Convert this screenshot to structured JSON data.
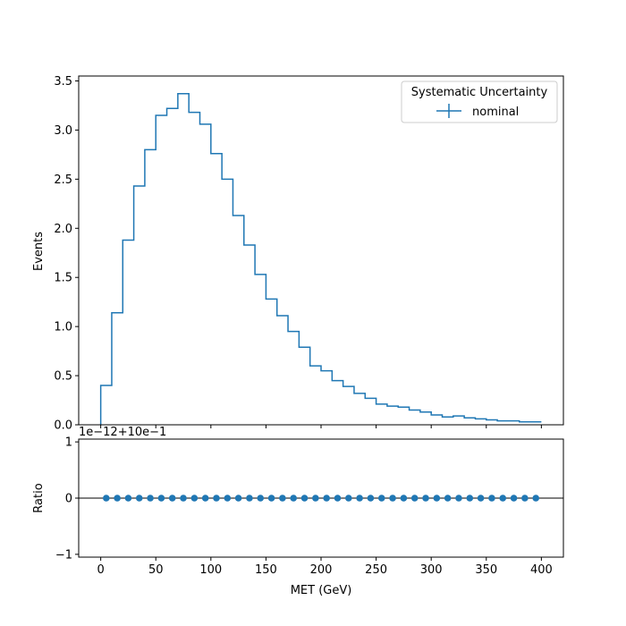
{
  "chart_data": [
    {
      "type": "histogram",
      "ylabel": "Events",
      "xlim": [
        -20,
        420
      ],
      "ylim": [
        0,
        3.55
      ],
      "yticks": [
        0.0,
        0.5,
        1.0,
        1.5,
        2.0,
        2.5,
        3.0,
        3.5
      ],
      "ytick_labels": [
        "0.0",
        "0.5",
        "1.0",
        "1.5",
        "2.0",
        "2.5",
        "3.0",
        "3.5"
      ],
      "xticks": [
        0,
        50,
        100,
        150,
        200,
        250,
        300,
        350,
        400
      ],
      "bin_edges": [
        0,
        10,
        20,
        30,
        40,
        50,
        60,
        70,
        80,
        90,
        100,
        110,
        120,
        130,
        140,
        150,
        160,
        170,
        180,
        190,
        200,
        210,
        220,
        230,
        240,
        250,
        260,
        270,
        280,
        290,
        300,
        310,
        320,
        330,
        340,
        350,
        360,
        370,
        380,
        390,
        400
      ],
      "values": [
        0.4,
        1.14,
        1.88,
        2.43,
        2.8,
        3.15,
        3.22,
        3.37,
        3.18,
        3.06,
        2.76,
        2.5,
        2.13,
        1.83,
        1.53,
        1.28,
        1.11,
        0.95,
        0.79,
        0.6,
        0.55,
        0.45,
        0.39,
        0.32,
        0.27,
        0.21,
        0.19,
        0.18,
        0.15,
        0.13,
        0.1,
        0.08,
        0.09,
        0.07,
        0.06,
        0.05,
        0.04,
        0.04,
        0.03,
        0.03
      ],
      "color": "#1f77b4",
      "legend": {
        "title": "Systematic Uncertainty",
        "entries": [
          "nominal"
        ],
        "placement": "top-right"
      }
    },
    {
      "type": "scatter",
      "ylabel": "Ratio",
      "xlabel": "MET (GeV)",
      "offset_text": "1e−12+10e−1",
      "xlim": [
        -20,
        420
      ],
      "ylim": [
        -1.05,
        1.05
      ],
      "yticks": [
        -1,
        0,
        1
      ],
      "ytick_labels": [
        "−1",
        "0",
        "1"
      ],
      "xticks": [
        0,
        50,
        100,
        150,
        200,
        250,
        300,
        350,
        400
      ],
      "xtick_labels": [
        "0",
        "50",
        "100",
        "150",
        "200",
        "250",
        "300",
        "350",
        "400"
      ],
      "x": [
        5,
        15,
        25,
        35,
        45,
        55,
        65,
        75,
        85,
        95,
        105,
        115,
        125,
        135,
        145,
        155,
        165,
        175,
        185,
        195,
        205,
        215,
        225,
        235,
        245,
        255,
        265,
        275,
        285,
        295,
        305,
        315,
        325,
        335,
        345,
        355,
        365,
        375,
        385,
        395
      ],
      "y": [
        0,
        0,
        0,
        0,
        0,
        0,
        0,
        0,
        0,
        0,
        0,
        0,
        0,
        0,
        0,
        0,
        0,
        0,
        0,
        0,
        0,
        0,
        0,
        0,
        0,
        0,
        0,
        0,
        0,
        0,
        0,
        0,
        0,
        0,
        0,
        0,
        0,
        0,
        0,
        0
      ],
      "reference_line": 0,
      "color": "#1f77b4"
    }
  ]
}
